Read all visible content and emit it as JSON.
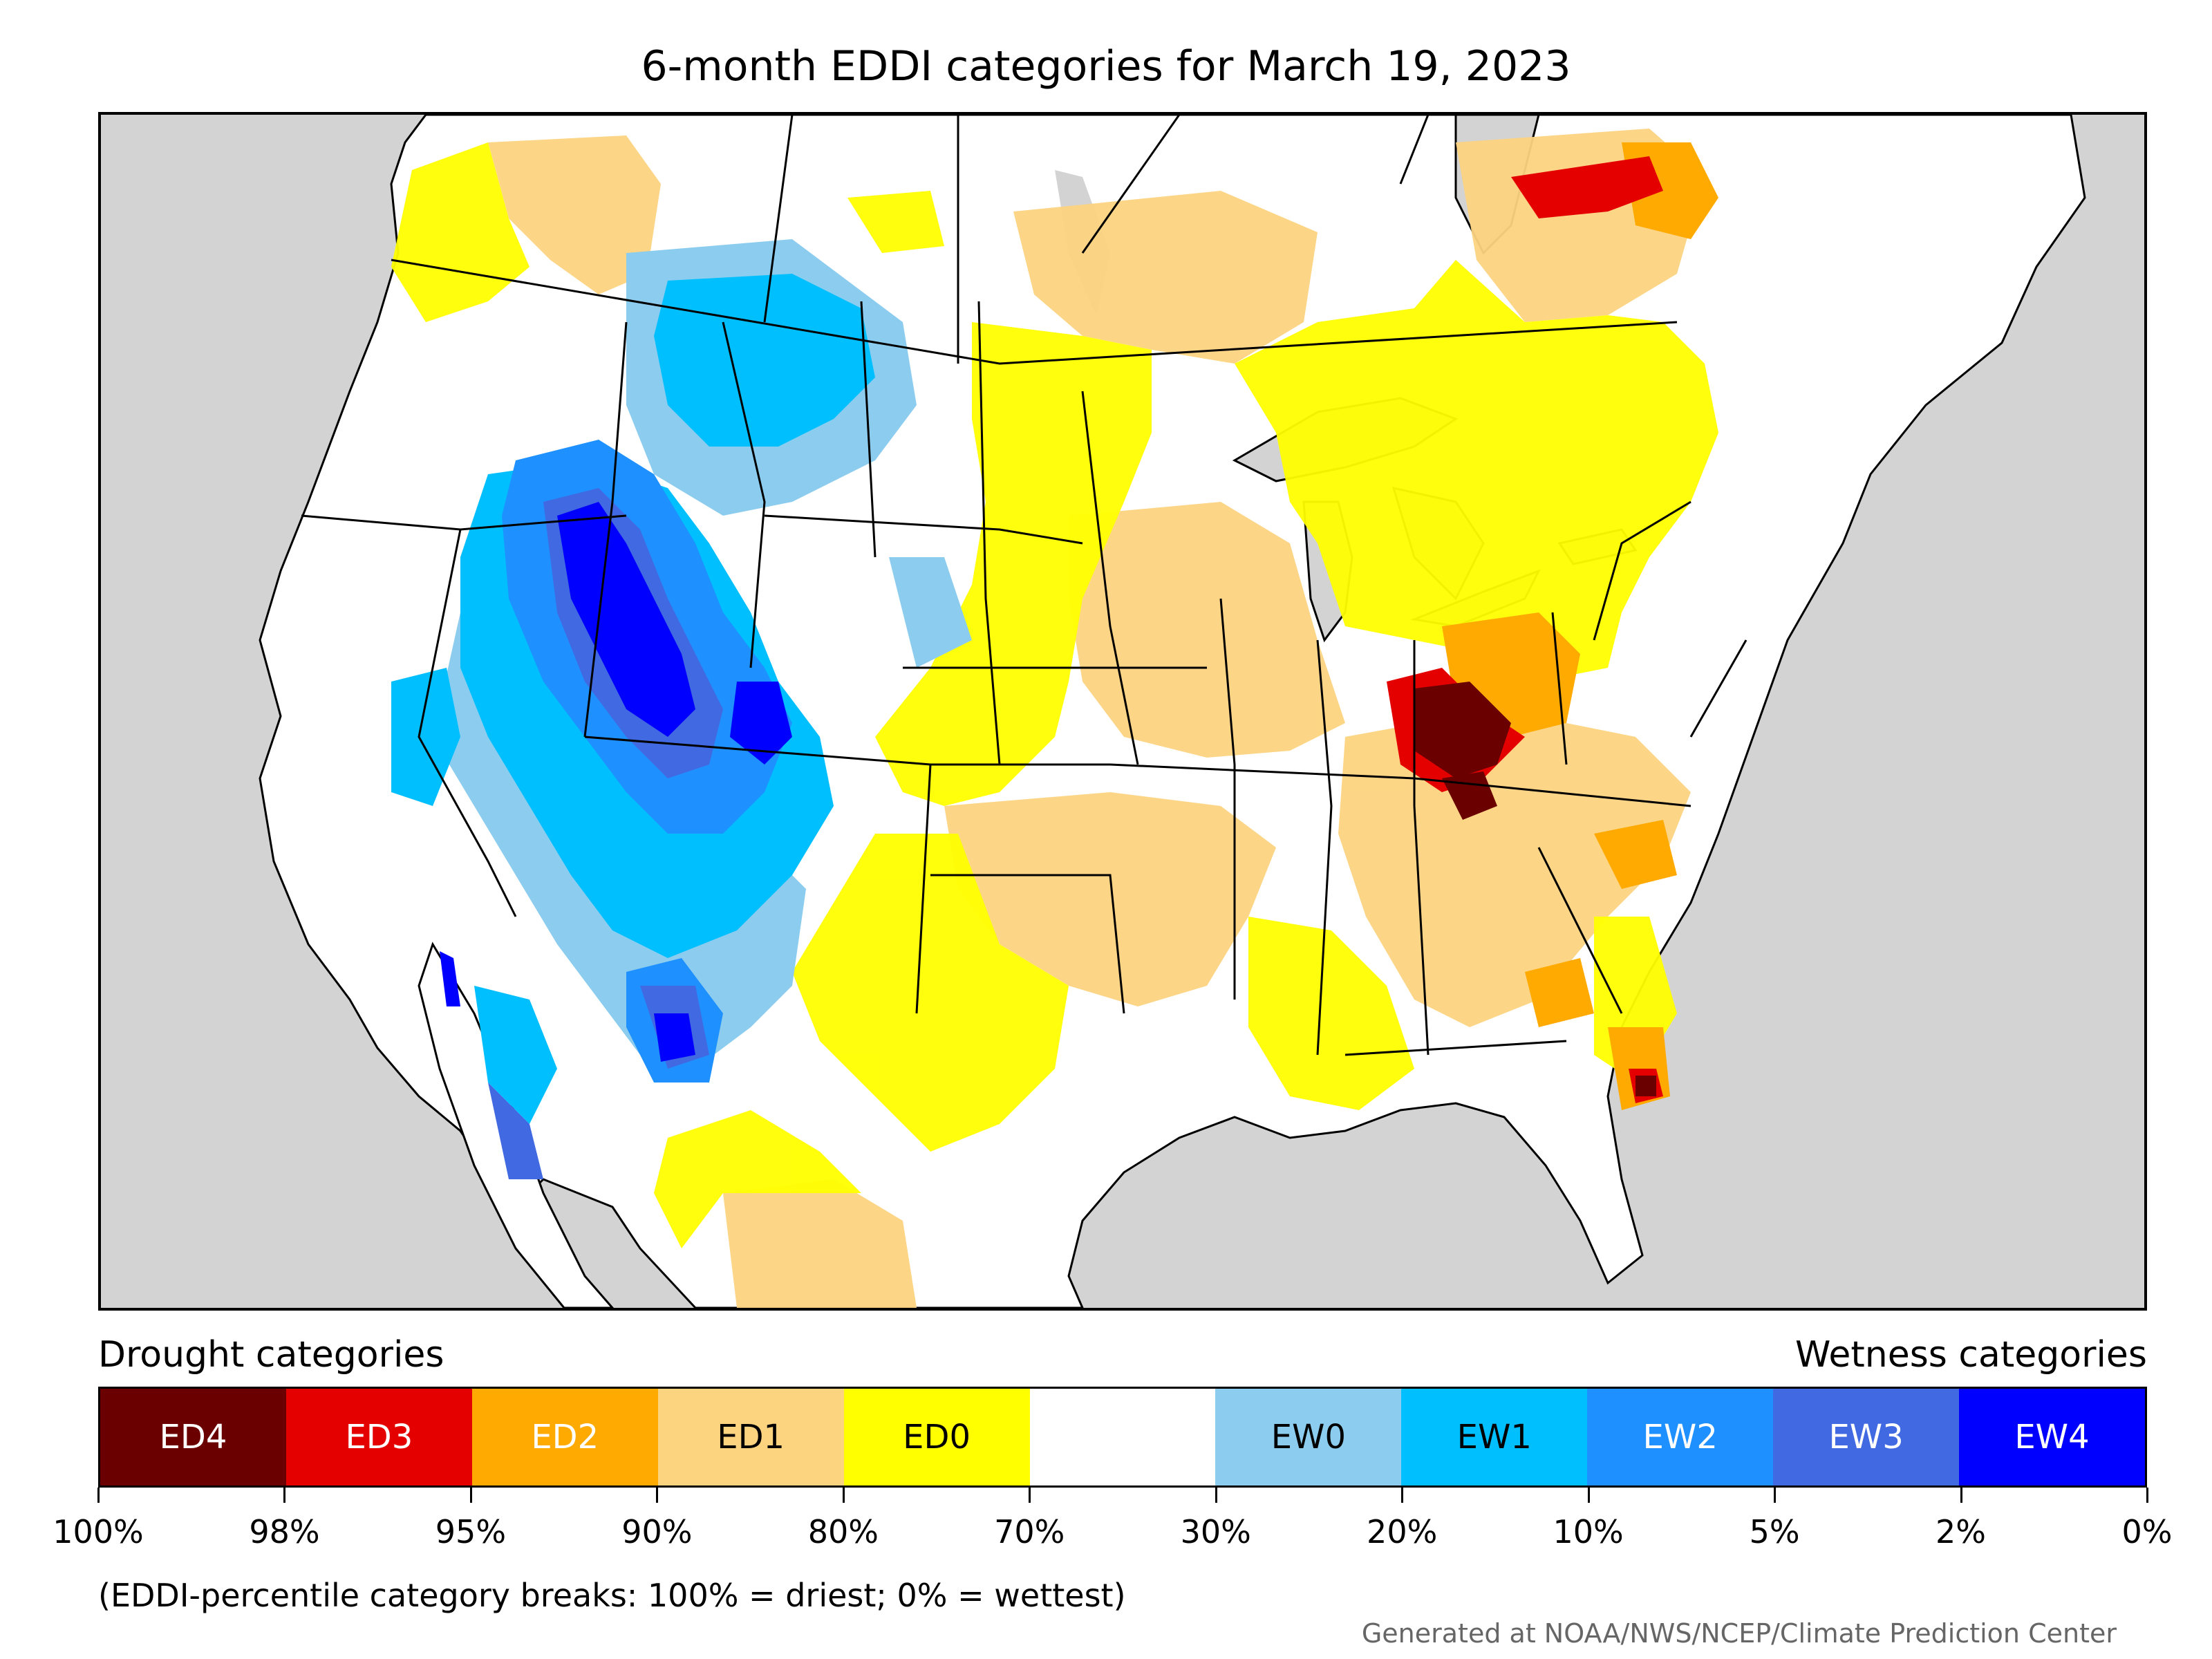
{
  "title": "6-month EDDI categories for March 19, 2023",
  "legend": {
    "drought_heading": "Drought categories",
    "wetness_heading": "Wetness categories",
    "categories": [
      {
        "label": "ED4",
        "color": "#6b0000",
        "text_color": "#ffffff"
      },
      {
        "label": "ED3",
        "color": "#e50000",
        "text_color": "#ffffff"
      },
      {
        "label": "ED2",
        "color": "#ffaa00",
        "text_color": "#ffffff"
      },
      {
        "label": "ED1",
        "color": "#fcd37f",
        "text_color": "#000000"
      },
      {
        "label": "ED0",
        "color": "#ffff00",
        "text_color": "#000000"
      },
      {
        "label": "",
        "color": "#ffffff",
        "text_color": "#000000"
      },
      {
        "label": "EW0",
        "color": "#8ccdef",
        "text_color": "#000000"
      },
      {
        "label": "EW1",
        "color": "#00bfff",
        "text_color": "#000000"
      },
      {
        "label": "EW2",
        "color": "#1e90ff",
        "text_color": "#ffffff"
      },
      {
        "label": "EW3",
        "color": "#4169e1",
        "text_color": "#ffffff"
      },
      {
        "label": "EW4",
        "color": "#0000ff",
        "text_color": "#ffffff"
      }
    ],
    "breaks": [
      "100%",
      "98%",
      "95%",
      "90%",
      "80%",
      "70%",
      "30%",
      "20%",
      "10%",
      "5%",
      "2%",
      "0%"
    ]
  },
  "footnote": "(EDDI-percentile category breaks: 100% = driest; 0% = wettest)",
  "credit": "Generated at NOAA/NWS/NCEP/Climate Prediction Center",
  "map": {
    "background_color": "#d3d3d3",
    "land_color": "#ffffff",
    "boundary_color": "#000000"
  }
}
